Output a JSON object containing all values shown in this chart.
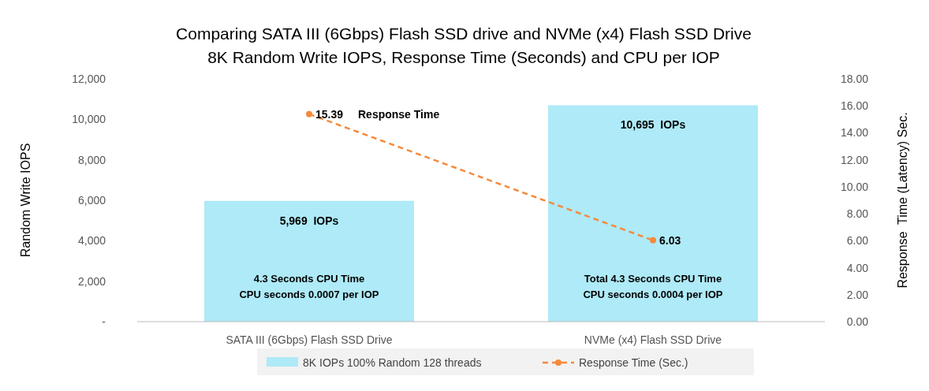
{
  "chart_data": {
    "type": "bar",
    "title": "Comparing SATA III (6Gbps) Flash SSD drive and NVMe (x4) Flash SSD Drive",
    "subtitle": "8K Random Write IOPS, Response Time (Seconds) and CPU per IOP",
    "categories": [
      "SATA III (6Gbps) Flash SSD Drive",
      "NVMe (x4) Flash SSD Drive"
    ],
    "series": [
      {
        "name": "8K IOPs 100% Random 128 threads",
        "color": "#aeeaf7",
        "values": [
          5969,
          10695
        ],
        "value_labels": [
          "5,969  IOPs",
          "10,695  IOPs"
        ]
      },
      {
        "name": "Response Time (Sec.)",
        "type": "line",
        "axis": "y2",
        "color": "#f58a3c",
        "line_style": "dashed",
        "marker": "circle",
        "values": [
          15.39,
          6.03
        ],
        "value_labels": [
          "15.39",
          "6.03"
        ]
      }
    ],
    "ylabel": "Random Write IOPS",
    "y2label": "Response  Time (Latency) Sec.",
    "ylim": [
      0,
      12000
    ],
    "yticks": [
      {
        "value": 0,
        "label": "-"
      },
      {
        "value": 2000,
        "label": "2,000"
      },
      {
        "value": 4000,
        "label": "4,000"
      },
      {
        "value": 6000,
        "label": "6,000"
      },
      {
        "value": 8000,
        "label": "8,000"
      },
      {
        "value": 10000,
        "label": "10,000"
      },
      {
        "value": 12000,
        "label": "12,000"
      }
    ],
    "y2lim": [
      0,
      18
    ],
    "y2ticks": [
      {
        "value": 0,
        "label": "0.00"
      },
      {
        "value": 2,
        "label": "2.00"
      },
      {
        "value": 4,
        "label": "4.00"
      },
      {
        "value": 6,
        "label": "6.00"
      },
      {
        "value": 8,
        "label": "8.00"
      },
      {
        "value": 10,
        "label": "10.00"
      },
      {
        "value": 12,
        "label": "12.00"
      },
      {
        "value": 14,
        "label": "14.00"
      },
      {
        "value": 16,
        "label": "16.00"
      },
      {
        "value": 18,
        "label": "18.00"
      }
    ],
    "annotations": [
      "Response Time",
      "4.3 Seconds CPU Time",
      "CPU seconds 0.0007 per IOP",
      "Total 4.3 Seconds CPU Time",
      "CPU seconds 0.0004 per IOP"
    ],
    "grid": false,
    "legend": "bottom"
  }
}
